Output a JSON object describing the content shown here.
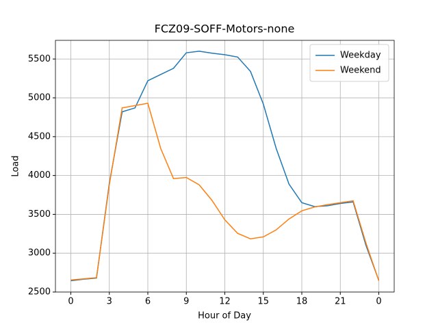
{
  "chart_data": {
    "type": "line",
    "title": "FCZ09-SOFF-Motors-none",
    "x_label": "Hour of Day",
    "y_label": "Load",
    "x": [
      0,
      1,
      2,
      3,
      4,
      5,
      6,
      7,
      8,
      9,
      10,
      11,
      12,
      13,
      14,
      15,
      16,
      17,
      18,
      19,
      20,
      21,
      22,
      23,
      24
    ],
    "series": [
      {
        "name": "Weekday",
        "color": "#1f77b4",
        "values": [
          2645,
          2665,
          2680,
          3900,
          4820,
          4870,
          5220,
          5300,
          5380,
          5580,
          5600,
          5575,
          5555,
          5525,
          5340,
          4920,
          4350,
          3890,
          3650,
          3600,
          3610,
          3640,
          3660,
          3100,
          2650
        ]
      },
      {
        "name": "Weekend",
        "color": "#ff7f0e",
        "values": [
          2655,
          2670,
          2685,
          3880,
          4870,
          4900,
          4930,
          4350,
          3960,
          3975,
          3880,
          3680,
          3430,
          3255,
          3185,
          3210,
          3300,
          3440,
          3545,
          3595,
          3625,
          3650,
          3675,
          3130,
          2645
        ]
      }
    ],
    "xlim": [
      -1.2,
      25.2
    ],
    "xticks": [
      0,
      3,
      6,
      9,
      12,
      15,
      18,
      21,
      {
        "value": 24,
        "label": "0"
      }
    ],
    "ylim": [
      2500,
      5740
    ],
    "yticks": [
      2500,
      3000,
      3500,
      4000,
      4500,
      5000,
      5500
    ],
    "grid": true,
    "legend": "upper right"
  }
}
